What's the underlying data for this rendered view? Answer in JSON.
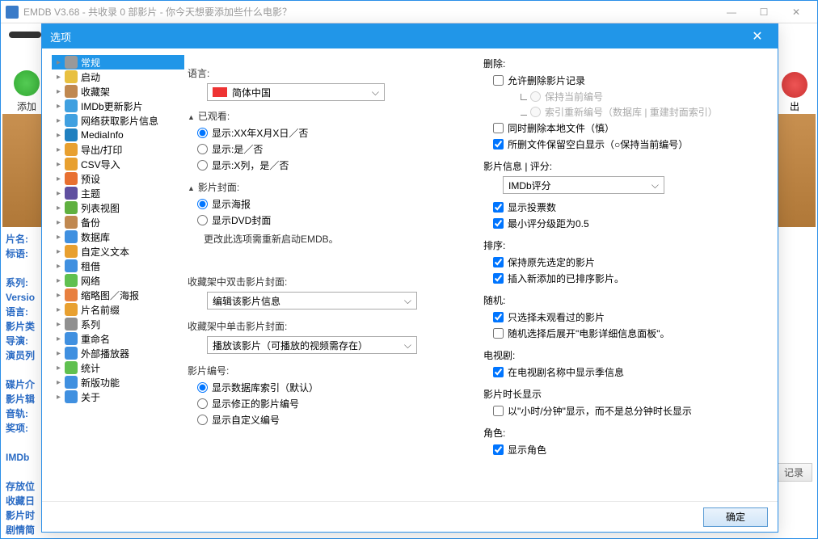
{
  "mainTitle": "EMDB V3.68 - 共收录 0 部影片 - 你今天想要添加些什么电影？",
  "bgToolbar": {
    "add": "添加",
    "export": "出"
  },
  "sideLabels": [
    "片名:",
    "标语:",
    "",
    "系列:",
    "Versio",
    "语言:",
    "影片类",
    "导演:",
    "演员列",
    "",
    "碟片介",
    "影片辑",
    "音轨:",
    "奖项:",
    "",
    "IMDb",
    "",
    "存放位",
    "收藏日",
    "影片时",
    "剧情简"
  ],
  "bottomBtn": "记录",
  "dialog": {
    "title": "选项",
    "tree": [
      {
        "l": "常规",
        "sel": true,
        "ic": "i1"
      },
      {
        "l": "启动",
        "ic": "i2"
      },
      {
        "l": "收藏架",
        "ic": "i3"
      },
      {
        "l": "IMDb更新影片",
        "ic": "i4"
      },
      {
        "l": "网络获取影片信息",
        "ic": "i5"
      },
      {
        "l": "MediaInfo",
        "ic": "i6"
      },
      {
        "l": "导出/打印",
        "ic": "i7"
      },
      {
        "l": "CSV导入",
        "ic": "i8"
      },
      {
        "l": "预设",
        "ic": "i9"
      },
      {
        "l": "主题",
        "ic": "i10"
      },
      {
        "l": "列表视图",
        "ic": "i11"
      },
      {
        "l": "备份",
        "ic": "i12"
      },
      {
        "l": "数据库",
        "ic": "i13"
      },
      {
        "l": "自定义文本",
        "ic": "i14"
      },
      {
        "l": "租借",
        "ic": "i15"
      },
      {
        "l": "网络",
        "ic": "i16"
      },
      {
        "l": "缩略图／海报",
        "ic": "i17"
      },
      {
        "l": "片名前缀",
        "ic": "i18"
      },
      {
        "l": "系列",
        "ic": "i19"
      },
      {
        "l": "重命名",
        "ic": "i20"
      },
      {
        "l": "外部播放器",
        "ic": "i21"
      },
      {
        "l": "统计",
        "ic": "i22"
      },
      {
        "l": "新版功能",
        "ic": "i23"
      },
      {
        "l": "关于",
        "ic": "i24"
      }
    ],
    "left": {
      "langLabel": "语言:",
      "langValue": "简体中国",
      "watchedLabel": "已观看:",
      "watchedOpts": [
        "显示:XX年X月X日／否",
        "显示:是／否",
        "显示:X列，是／否"
      ],
      "coverLabel": "影片封面:",
      "coverOpts": [
        "显示海报",
        "显示DVD封面"
      ],
      "coverNote": "更改此选项需重新启动EMDB。",
      "dblLabel": "收藏架中双击影片封面:",
      "dblValue": "编辑该影片信息",
      "sglLabel": "收藏架中单击影片封面:",
      "sglValue": "播放该影片（可播放的视频需存在）",
      "numLabel": "影片编号:",
      "numOpts": [
        "显示数据库索引（默认）",
        "显示修正的影片编号",
        "显示自定义编号"
      ]
    },
    "right": {
      "delLabel": "删除:",
      "delAllow": "允许删除影片记录",
      "delKeep": "保持当前编号",
      "delReidx": "索引重新编号（数据库 | 重建封面索引）",
      "delLocal": "同时删除本地文件（慎）",
      "delBlank": "所删文件保留空白显示（○保持当前编号）",
      "ratingLabel": "影片信息 | 评分:",
      "ratingValue": "IMDb评分",
      "ratingShowVotes": "显示投票数",
      "ratingMin": "最小评分级距为0.5",
      "sortLabel": "排序:",
      "sortKeep": "保持原先选定的影片",
      "sortInsert": "插入新添加的已排序影片。",
      "randLabel": "随机:",
      "randUnwatched": "只选择未观看过的影片",
      "randExpand": "随机选择后展开\"电影详细信息面板\"。",
      "tvLabel": "电视剧:",
      "tvSeason": "在电视剧名称中显示季信息",
      "durLabel": "影片时长显示",
      "durHM": "以\"小时/分钟\"显示，而不是总分钟时长显示",
      "roleLabel": "角色:",
      "roleShow": "显示角色"
    },
    "ok": "确定"
  }
}
